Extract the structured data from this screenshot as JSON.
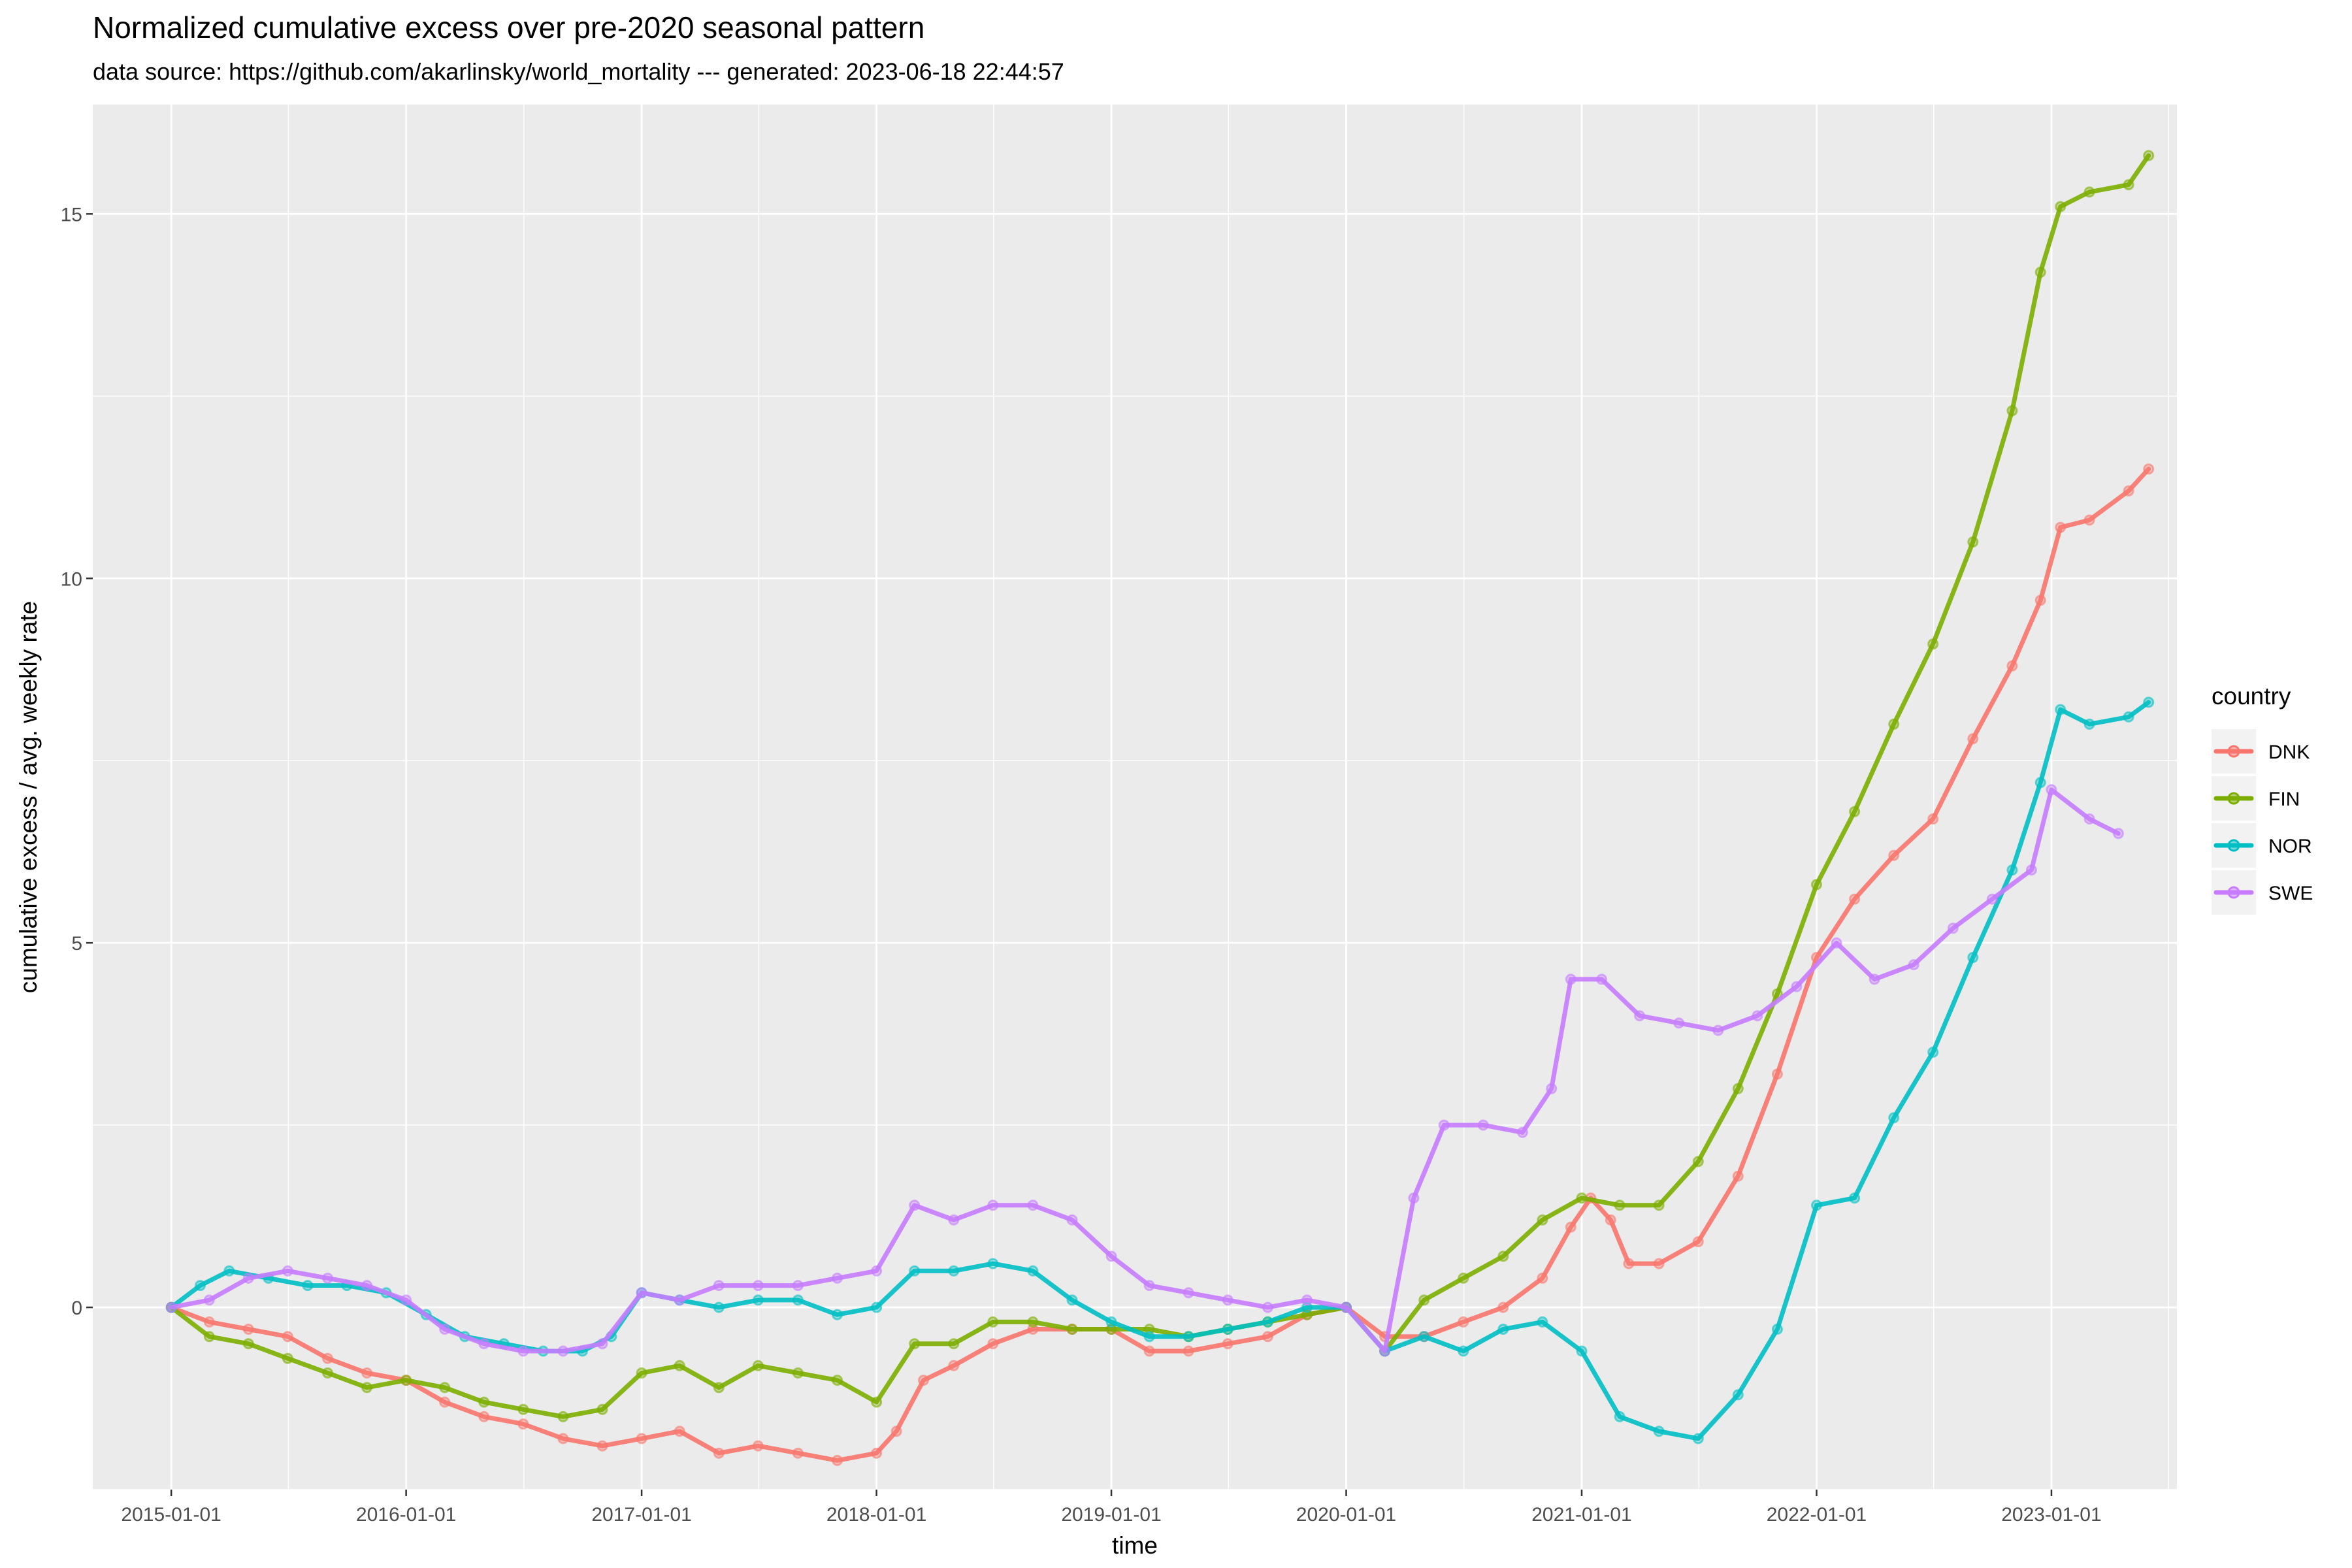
{
  "chart_data": {
    "type": "line",
    "title": "Normalized cumulative excess over pre-2020 seasonal pattern",
    "subtitle": "data source: https://github.com/akarlinsky/world_mortality --- generated: 2023-06-18 22:44:57",
    "xlabel": "time",
    "ylabel": "cumulative excess / avg. weekly rate",
    "x_ticks": [
      "2015-01-01",
      "2016-01-01",
      "2017-01-01",
      "2018-01-01",
      "2019-01-01",
      "2020-01-01",
      "2021-01-01",
      "2022-01-01",
      "2023-01-01"
    ],
    "y_ticks": [
      0,
      5,
      10,
      15
    ],
    "xlim": [
      "2014-09-01",
      "2023-07-15"
    ],
    "ylim": [
      -2.5,
      16.5
    ],
    "grid": true,
    "legend": {
      "title": "country",
      "placement": "right"
    },
    "series": [
      {
        "name": "DNK",
        "color": "#F8766D",
        "points": [
          [
            "2015-01-01",
            0
          ],
          [
            "2015-03-01",
            -0.2
          ],
          [
            "2015-05-01",
            -0.3
          ],
          [
            "2015-07-01",
            -0.4
          ],
          [
            "2015-09-01",
            -0.7
          ],
          [
            "2015-11-01",
            -0.9
          ],
          [
            "2016-01-01",
            -1.0
          ],
          [
            "2016-03-01",
            -1.3
          ],
          [
            "2016-05-01",
            -1.5
          ],
          [
            "2016-07-01",
            -1.6
          ],
          [
            "2016-09-01",
            -1.8
          ],
          [
            "2016-11-01",
            -1.9
          ],
          [
            "2017-01-01",
            -1.8
          ],
          [
            "2017-03-01",
            -1.7
          ],
          [
            "2017-05-01",
            -2.0
          ],
          [
            "2017-07-01",
            -1.9
          ],
          [
            "2017-09-01",
            -2.0
          ],
          [
            "2017-11-01",
            -2.1
          ],
          [
            "2018-01-01",
            -2.0
          ],
          [
            "2018-02-01",
            -1.7
          ],
          [
            "2018-03-15",
            -1.0
          ],
          [
            "2018-05-01",
            -0.8
          ],
          [
            "2018-07-01",
            -0.5
          ],
          [
            "2018-09-01",
            -0.3
          ],
          [
            "2018-11-01",
            -0.3
          ],
          [
            "2019-01-01",
            -0.3
          ],
          [
            "2019-03-01",
            -0.6
          ],
          [
            "2019-05-01",
            -0.6
          ],
          [
            "2019-07-01",
            -0.5
          ],
          [
            "2019-09-01",
            -0.4
          ],
          [
            "2019-11-01",
            -0.1
          ],
          [
            "2020-01-01",
            0
          ],
          [
            "2020-03-01",
            -0.4
          ],
          [
            "2020-05-01",
            -0.4
          ],
          [
            "2020-07-01",
            -0.2
          ],
          [
            "2020-09-01",
            0.0
          ],
          [
            "2020-11-01",
            0.4
          ],
          [
            "2020-12-15",
            1.1
          ],
          [
            "2021-01-15",
            1.5
          ],
          [
            "2021-02-15",
            1.2
          ],
          [
            "2021-03-15",
            0.6
          ],
          [
            "2021-05-01",
            0.6
          ],
          [
            "2021-07-01",
            0.9
          ],
          [
            "2021-09-01",
            1.8
          ],
          [
            "2021-11-01",
            3.2
          ],
          [
            "2022-01-01",
            4.8
          ],
          [
            "2022-03-01",
            5.6
          ],
          [
            "2022-05-01",
            6.2
          ],
          [
            "2022-07-01",
            6.7
          ],
          [
            "2022-09-01",
            7.8
          ],
          [
            "2022-11-01",
            8.8
          ],
          [
            "2022-12-15",
            9.7
          ],
          [
            "2023-01-15",
            10.7
          ],
          [
            "2023-03-01",
            10.8
          ],
          [
            "2023-05-01",
            11.2
          ],
          [
            "2023-06-01",
            11.5
          ]
        ]
      },
      {
        "name": "FIN",
        "color": "#7CAE00",
        "points": [
          [
            "2015-01-01",
            0
          ],
          [
            "2015-03-01",
            -0.4
          ],
          [
            "2015-05-01",
            -0.5
          ],
          [
            "2015-07-01",
            -0.7
          ],
          [
            "2015-09-01",
            -0.9
          ],
          [
            "2015-11-01",
            -1.1
          ],
          [
            "2016-01-01",
            -1.0
          ],
          [
            "2016-03-01",
            -1.1
          ],
          [
            "2016-05-01",
            -1.3
          ],
          [
            "2016-07-01",
            -1.4
          ],
          [
            "2016-09-01",
            -1.5
          ],
          [
            "2016-11-01",
            -1.4
          ],
          [
            "2017-01-01",
            -0.9
          ],
          [
            "2017-03-01",
            -0.8
          ],
          [
            "2017-05-01",
            -1.1
          ],
          [
            "2017-07-01",
            -0.8
          ],
          [
            "2017-09-01",
            -0.9
          ],
          [
            "2017-11-01",
            -1.0
          ],
          [
            "2018-01-01",
            -1.3
          ],
          [
            "2018-03-01",
            -0.5
          ],
          [
            "2018-05-01",
            -0.5
          ],
          [
            "2018-07-01",
            -0.2
          ],
          [
            "2018-09-01",
            -0.2
          ],
          [
            "2018-11-01",
            -0.3
          ],
          [
            "2019-01-01",
            -0.3
          ],
          [
            "2019-03-01",
            -0.3
          ],
          [
            "2019-05-01",
            -0.4
          ],
          [
            "2019-07-01",
            -0.3
          ],
          [
            "2019-09-01",
            -0.2
          ],
          [
            "2019-11-01",
            -0.1
          ],
          [
            "2020-01-01",
            0
          ],
          [
            "2020-03-01",
            -0.6
          ],
          [
            "2020-05-01",
            0.1
          ],
          [
            "2020-07-01",
            0.4
          ],
          [
            "2020-09-01",
            0.7
          ],
          [
            "2020-11-01",
            1.2
          ],
          [
            "2021-01-01",
            1.5
          ],
          [
            "2021-03-01",
            1.4
          ],
          [
            "2021-05-01",
            1.4
          ],
          [
            "2021-07-01",
            2.0
          ],
          [
            "2021-09-01",
            3.0
          ],
          [
            "2021-11-01",
            4.3
          ],
          [
            "2022-01-01",
            5.8
          ],
          [
            "2022-03-01",
            6.8
          ],
          [
            "2022-05-01",
            8.0
          ],
          [
            "2022-07-01",
            9.1
          ],
          [
            "2022-09-01",
            10.5
          ],
          [
            "2022-11-01",
            12.3
          ],
          [
            "2022-12-15",
            14.2
          ],
          [
            "2023-01-15",
            15.1
          ],
          [
            "2023-03-01",
            15.3
          ],
          [
            "2023-05-01",
            15.4
          ],
          [
            "2023-06-01",
            15.8
          ]
        ]
      },
      {
        "name": "NOR",
        "color": "#00BFC4",
        "points": [
          [
            "2015-01-01",
            0
          ],
          [
            "2015-02-15",
            0.3
          ],
          [
            "2015-04-01",
            0.5
          ],
          [
            "2015-06-01",
            0.4
          ],
          [
            "2015-08-01",
            0.3
          ],
          [
            "2015-10-01",
            0.3
          ],
          [
            "2015-12-01",
            0.2
          ],
          [
            "2016-02-01",
            -0.1
          ],
          [
            "2016-04-01",
            -0.4
          ],
          [
            "2016-06-01",
            -0.5
          ],
          [
            "2016-08-01",
            -0.6
          ],
          [
            "2016-10-01",
            -0.6
          ],
          [
            "2016-11-15",
            -0.4
          ],
          [
            "2017-01-01",
            0.2
          ],
          [
            "2017-03-01",
            0.1
          ],
          [
            "2017-05-01",
            0.0
          ],
          [
            "2017-07-01",
            0.1
          ],
          [
            "2017-09-01",
            0.1
          ],
          [
            "2017-11-01",
            -0.1
          ],
          [
            "2018-01-01",
            0.0
          ],
          [
            "2018-03-01",
            0.5
          ],
          [
            "2018-05-01",
            0.5
          ],
          [
            "2018-07-01",
            0.6
          ],
          [
            "2018-09-01",
            0.5
          ],
          [
            "2018-11-01",
            0.1
          ],
          [
            "2019-01-01",
            -0.2
          ],
          [
            "2019-03-01",
            -0.4
          ],
          [
            "2019-05-01",
            -0.4
          ],
          [
            "2019-07-01",
            -0.3
          ],
          [
            "2019-09-01",
            -0.2
          ],
          [
            "2019-11-01",
            0.0
          ],
          [
            "2020-01-01",
            0
          ],
          [
            "2020-03-01",
            -0.6
          ],
          [
            "2020-05-01",
            -0.4
          ],
          [
            "2020-07-01",
            -0.6
          ],
          [
            "2020-09-01",
            -0.3
          ],
          [
            "2020-11-01",
            -0.2
          ],
          [
            "2021-01-01",
            -0.6
          ],
          [
            "2021-03-01",
            -1.5
          ],
          [
            "2021-05-01",
            -1.7
          ],
          [
            "2021-07-01",
            -1.8
          ],
          [
            "2021-09-01",
            -1.2
          ],
          [
            "2021-11-01",
            -0.3
          ],
          [
            "2022-01-01",
            1.4
          ],
          [
            "2022-03-01",
            1.5
          ],
          [
            "2022-05-01",
            2.6
          ],
          [
            "2022-07-01",
            3.5
          ],
          [
            "2022-09-01",
            4.8
          ],
          [
            "2022-11-01",
            6.0
          ],
          [
            "2022-12-15",
            7.2
          ],
          [
            "2023-01-15",
            8.2
          ],
          [
            "2023-03-01",
            8.0
          ],
          [
            "2023-05-01",
            8.1
          ],
          [
            "2023-06-01",
            8.3
          ]
        ]
      },
      {
        "name": "SWE",
        "color": "#C77CFF",
        "points": [
          [
            "2015-01-01",
            0
          ],
          [
            "2015-03-01",
            0.1
          ],
          [
            "2015-05-01",
            0.4
          ],
          [
            "2015-07-01",
            0.5
          ],
          [
            "2015-09-01",
            0.4
          ],
          [
            "2015-11-01",
            0.3
          ],
          [
            "2016-01-01",
            0.1
          ],
          [
            "2016-03-01",
            -0.3
          ],
          [
            "2016-05-01",
            -0.5
          ],
          [
            "2016-07-01",
            -0.6
          ],
          [
            "2016-09-01",
            -0.6
          ],
          [
            "2016-11-01",
            -0.5
          ],
          [
            "2017-01-01",
            0.2
          ],
          [
            "2017-03-01",
            0.1
          ],
          [
            "2017-05-01",
            0.3
          ],
          [
            "2017-07-01",
            0.3
          ],
          [
            "2017-09-01",
            0.3
          ],
          [
            "2017-11-01",
            0.4
          ],
          [
            "2018-01-01",
            0.5
          ],
          [
            "2018-03-01",
            1.4
          ],
          [
            "2018-05-01",
            1.2
          ],
          [
            "2018-07-01",
            1.4
          ],
          [
            "2018-09-01",
            1.4
          ],
          [
            "2018-11-01",
            1.2
          ],
          [
            "2019-01-01",
            0.7
          ],
          [
            "2019-03-01",
            0.3
          ],
          [
            "2019-05-01",
            0.2
          ],
          [
            "2019-07-01",
            0.1
          ],
          [
            "2019-09-01",
            0.0
          ],
          [
            "2019-11-01",
            0.1
          ],
          [
            "2020-01-01",
            0
          ],
          [
            "2020-03-01",
            -0.6
          ],
          [
            "2020-04-15",
            1.5
          ],
          [
            "2020-06-01",
            2.5
          ],
          [
            "2020-08-01",
            2.5
          ],
          [
            "2020-10-01",
            2.4
          ],
          [
            "2020-11-15",
            3.0
          ],
          [
            "2020-12-15",
            4.5
          ],
          [
            "2021-02-01",
            4.5
          ],
          [
            "2021-04-01",
            4.0
          ],
          [
            "2021-06-01",
            3.9
          ],
          [
            "2021-08-01",
            3.8
          ],
          [
            "2021-10-01",
            4.0
          ],
          [
            "2021-12-01",
            4.4
          ],
          [
            "2022-02-01",
            5.0
          ],
          [
            "2022-04-01",
            4.5
          ],
          [
            "2022-06-01",
            4.7
          ],
          [
            "2022-08-01",
            5.2
          ],
          [
            "2022-10-01",
            5.6
          ],
          [
            "2022-12-01",
            6.0
          ],
          [
            "2023-01-01",
            7.1
          ],
          [
            "2023-03-01",
            6.7
          ],
          [
            "2023-04-15",
            6.5
          ]
        ]
      }
    ]
  }
}
